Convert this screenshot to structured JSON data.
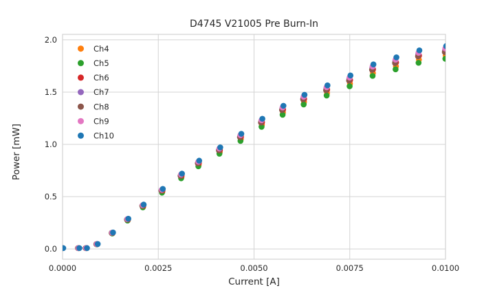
{
  "figure": {
    "background": "#ffffff",
    "text_color": "#262626",
    "grid_color": "#d3d3d3"
  },
  "chart_data": {
    "type": "scatter",
    "title": "D4745 V21005 Pre Burn-In",
    "xlabel": "Current [A]",
    "ylabel": "Power [mW]",
    "xlim": [
      0.0,
      0.01
    ],
    "ylim": [
      -0.098,
      2.052
    ],
    "grid": true,
    "legend_position": "upper-left",
    "xticks": {
      "values": [
        0.0,
        0.0025,
        0.005,
        0.0075,
        0.01
      ],
      "labels": [
        "0.0000",
        "0.0025",
        "0.0050",
        "0.0075",
        "0.0100"
      ]
    },
    "yticks": {
      "values": [
        0.0,
        0.5,
        1.0,
        1.5,
        2.0
      ],
      "labels": [
        "0.0",
        "0.5",
        "1.0",
        "1.5",
        "2.0"
      ]
    },
    "x": [
      0.0,
      0.00042,
      0.00062,
      0.0009,
      0.0013,
      0.0017,
      0.0021,
      0.0026,
      0.0031,
      0.00355,
      0.0041,
      0.00465,
      0.0052,
      0.00575,
      0.0063,
      0.0069,
      0.0075,
      0.0081,
      0.0087,
      0.0093,
      0.01
    ],
    "series": [
      {
        "name": "Ch4",
        "color": "#ff7f0e",
        "values": [
          0.008,
          0.008,
          0.008,
          0.045,
          0.15,
          0.276,
          0.404,
          0.547,
          0.687,
          0.804,
          0.926,
          1.05,
          1.187,
          1.305,
          1.405,
          1.491,
          1.581,
          1.682,
          1.746,
          1.81,
          1.849
        ]
      },
      {
        "name": "Ch5",
        "color": "#2ca02c",
        "values": [
          0.008,
          0.008,
          0.008,
          0.044,
          0.148,
          0.271,
          0.398,
          0.538,
          0.676,
          0.791,
          0.911,
          1.033,
          1.168,
          1.283,
          1.382,
          1.467,
          1.556,
          1.655,
          1.718,
          1.78,
          1.819
        ]
      },
      {
        "name": "Ch6",
        "color": "#d62728",
        "values": [
          0.008,
          0.008,
          0.008,
          0.046,
          0.153,
          0.282,
          0.413,
          0.559,
          0.701,
          0.822,
          0.946,
          1.072,
          1.212,
          1.333,
          1.435,
          1.523,
          1.615,
          1.718,
          1.784,
          1.849,
          1.889
        ]
      },
      {
        "name": "Ch7",
        "color": "#9467bd",
        "values": [
          0.008,
          0.008,
          0.008,
          0.046,
          0.154,
          0.284,
          0.416,
          0.563,
          0.706,
          0.827,
          0.952,
          1.08,
          1.221,
          1.342,
          1.445,
          1.534,
          1.627,
          1.73,
          1.796,
          1.862,
          1.902
        ]
      },
      {
        "name": "Ch8",
        "color": "#8c564b",
        "values": [
          0.008,
          0.008,
          0.008,
          0.046,
          0.153,
          0.281,
          0.412,
          0.557,
          0.699,
          0.819,
          0.943,
          1.069,
          1.209,
          1.329,
          1.431,
          1.518,
          1.61,
          1.713,
          1.778,
          1.843,
          1.883
        ]
      },
      {
        "name": "Ch9",
        "color": "#e377c2",
        "values": [
          0.008,
          0.008,
          0.008,
          0.047,
          0.156,
          0.286,
          0.419,
          0.567,
          0.712,
          0.834,
          0.96,
          1.088,
          1.231,
          1.353,
          1.456,
          1.546,
          1.639,
          1.744,
          1.81,
          1.876,
          1.917
        ]
      },
      {
        "name": "Ch10",
        "color": "#1f77b4",
        "values": [
          0.008,
          0.008,
          0.008,
          0.047,
          0.157,
          0.289,
          0.424,
          0.574,
          0.72,
          0.844,
          0.971,
          1.101,
          1.245,
          1.369,
          1.474,
          1.564,
          1.659,
          1.765,
          1.832,
          1.899,
          1.94
        ]
      }
    ]
  }
}
